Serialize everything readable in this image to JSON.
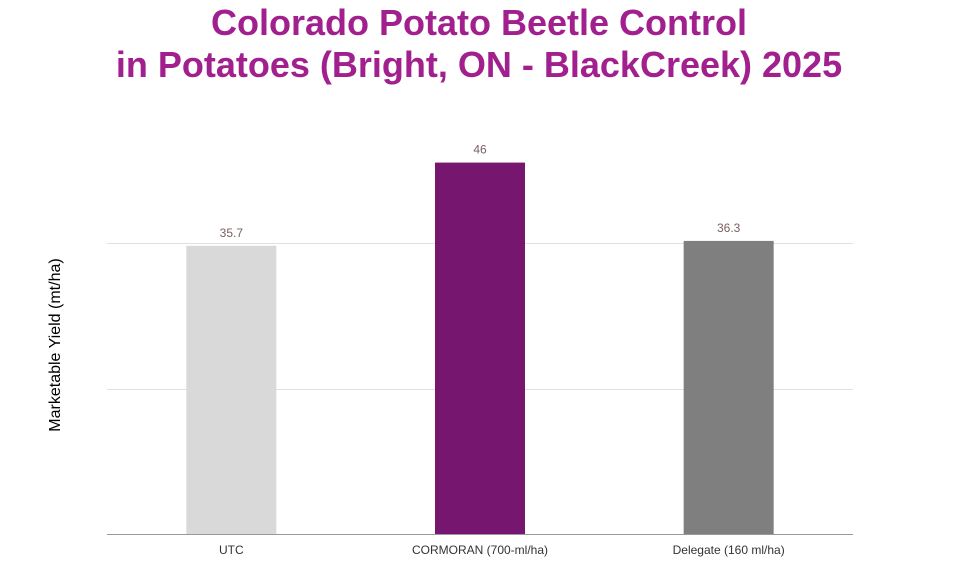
{
  "chart_data": {
    "type": "bar",
    "title_lines": [
      "Colorado Potato Beetle Control",
      "in Potatoes (Bright, ON - BlackCreek) 2025"
    ],
    "xlabel": "",
    "ylabel": "Marketable Yield (mt/ha)",
    "categories": [
      "UTC",
      "CORMORAN (700-ml/ha)",
      "Delegate (160 ml/ha)"
    ],
    "values": [
      35.7,
      46,
      36.3
    ],
    "data_labels": [
      "35.7",
      "46",
      "36.3"
    ],
    "bar_colors": [
      "#d9d9d9",
      "#76166e",
      "#7f7f7f"
    ],
    "ylim": [
      0,
      54
    ],
    "gridlines": [
      0,
      18,
      36
    ],
    "grid": true,
    "legend": "none"
  },
  "colors": {
    "title": "#a1208e",
    "grid": "#e0e0e0",
    "axis": "#999999"
  }
}
